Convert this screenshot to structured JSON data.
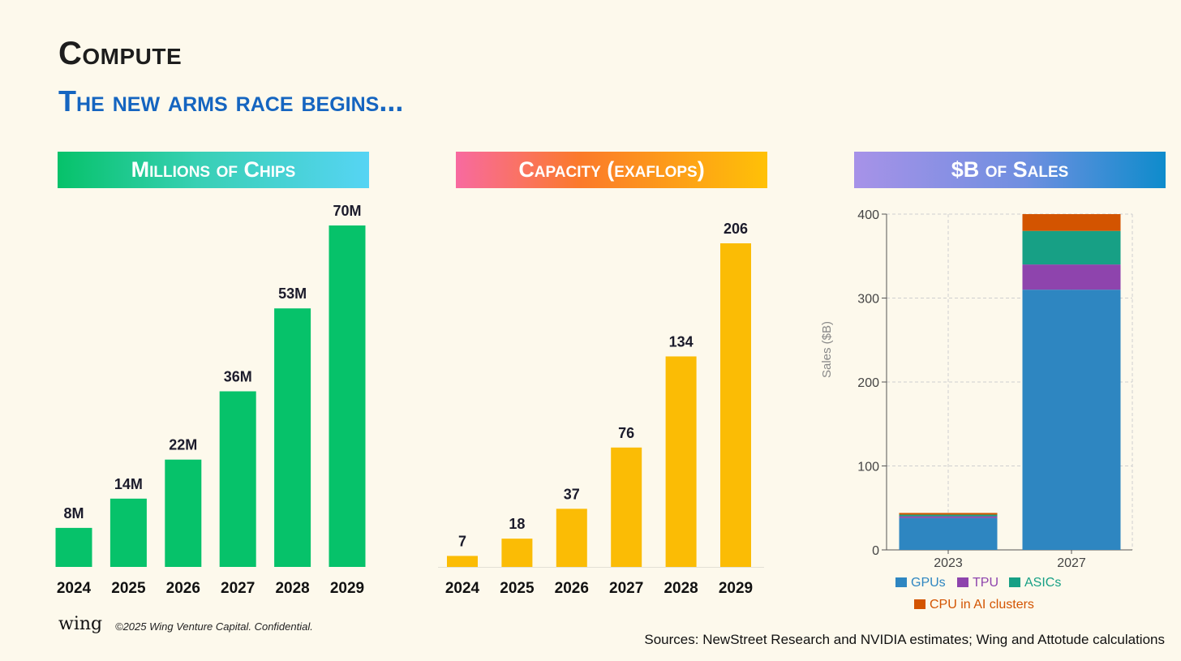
{
  "title": "Compute",
  "subtitle": "The new arms race begins...",
  "footer": {
    "logo": "wing",
    "copyright": "©2025 Wing Venture Capital. Confidential.",
    "sources": "Sources: NewStreet Research and NVIDIA estimates; Wing and Attotude calculations"
  },
  "chart_data": [
    {
      "type": "bar",
      "title": "Millions of Chips",
      "categories": [
        "2024",
        "2025",
        "2026",
        "2027",
        "2028",
        "2029"
      ],
      "values": [
        8,
        14,
        22,
        36,
        53,
        70
      ],
      "labels": [
        "8M",
        "14M",
        "22M",
        "36M",
        "53M",
        "70M"
      ],
      "color": "#06c26a",
      "ylim": [
        0,
        70
      ]
    },
    {
      "type": "bar",
      "title": "Capacity (exaflops)",
      "categories": [
        "2024",
        "2025",
        "2026",
        "2027",
        "2028",
        "2029"
      ],
      "values": [
        7,
        18,
        37,
        76,
        134,
        206
      ],
      "labels": [
        "7",
        "18",
        "37",
        "76",
        "134",
        "206"
      ],
      "color": "#fbbc05",
      "ylim": [
        0,
        206
      ]
    },
    {
      "type": "bar",
      "stacked": true,
      "title": "$B of Sales",
      "ylabel": "Sales ($B)",
      "categories": [
        "2023",
        "2027"
      ],
      "ylim": [
        0,
        400
      ],
      "yticks": [
        "0",
        "100",
        "200",
        "300",
        "400"
      ],
      "grid": true,
      "legend": "bottom",
      "series": [
        {
          "name": "GPUs",
          "values": [
            38,
            310
          ],
          "color": "#2e86c1"
        },
        {
          "name": "TPU",
          "values": [
            2,
            30
          ],
          "color": "#8e44ad"
        },
        {
          "name": "ASICs",
          "values": [
            2,
            40
          ],
          "color": "#17a085"
        },
        {
          "name": "CPU in AI clusters",
          "values": [
            2,
            20
          ],
          "color": "#d35400"
        }
      ]
    }
  ]
}
